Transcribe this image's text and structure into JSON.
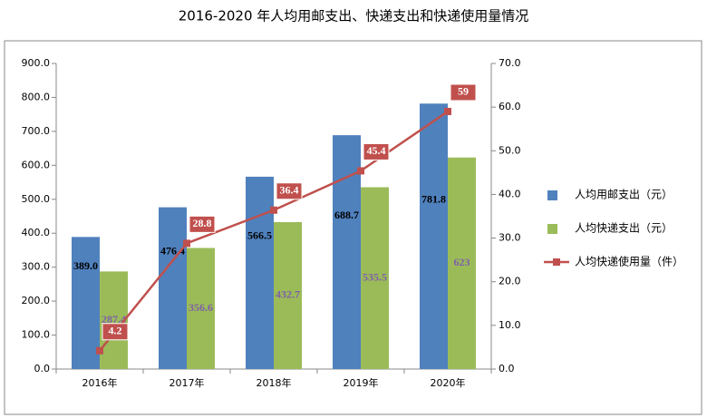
{
  "chart_data": {
    "type": "bar",
    "title": "2016-2020 年人均用邮支出、快递支出和快递使用量情况",
    "categories": [
      "2016年",
      "2017年",
      "2018年",
      "2019年",
      "2020年"
    ],
    "series": [
      {
        "name": "人均用邮支出（元）",
        "color": "#4f81bd",
        "type": "bar",
        "values": [
          389.0,
          476.4,
          566.5,
          688.7,
          781.8
        ],
        "value_labels": [
          "389.0",
          "476.4",
          "566.5",
          "688.7",
          "781.8"
        ]
      },
      {
        "name": "人均快递支出（元）",
        "color": "#9bbb59",
        "type": "bar",
        "values": [
          287.4,
          356.6,
          432.7,
          535.5,
          623
        ]
      },
      {
        "name": "人均快递使用量（件）",
        "color": "#c0504d",
        "type": "line",
        "axis": "y2",
        "values": [
          4.2,
          28.8,
          36.4,
          45.4,
          59
        ]
      }
    ],
    "ylim": [
      0,
      900
    ],
    "yticks": [
      {
        "value": 0,
        "label": "0.0"
      },
      {
        "value": 100,
        "label": "100.0"
      },
      {
        "value": 200,
        "label": "200.0"
      },
      {
        "value": 300,
        "label": "300.0"
      },
      {
        "value": 400,
        "label": "400.0"
      },
      {
        "value": 500,
        "label": "500.0"
      },
      {
        "value": 600,
        "label": "600.0"
      },
      {
        "value": 700,
        "label": "700.0"
      },
      {
        "value": 800,
        "label": "800.0"
      },
      {
        "value": 900,
        "label": "900.0"
      }
    ],
    "y2lim": [
      0,
      70
    ],
    "y2ticks": [
      {
        "value": 0,
        "label": "0.0"
      },
      {
        "value": 10,
        "label": "10.0"
      },
      {
        "value": 20,
        "label": "20.0"
      },
      {
        "value": 30,
        "label": "30.0"
      },
      {
        "value": 40,
        "label": "40.0"
      },
      {
        "value": 50,
        "label": "50.0"
      },
      {
        "value": 60,
        "label": "60.0"
      },
      {
        "value": 70,
        "label": "70.0"
      }
    ],
    "legend": "right"
  }
}
